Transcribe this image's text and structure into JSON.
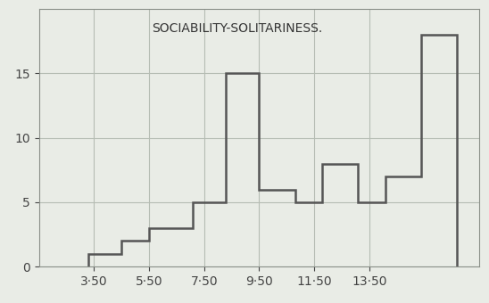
{
  "chart_data": {
    "type": "histogram",
    "title": "SOCIABILITY-SOLITARINESS.",
    "bins": [
      3.3,
      4.5,
      5.5,
      7.1,
      8.3,
      9.5,
      10.8,
      11.8,
      13.1,
      14.1,
      15.4,
      16.7
    ],
    "counts": [
      1,
      2,
      3,
      5,
      15,
      6,
      5,
      8,
      5,
      7,
      18
    ],
    "color": "#555555",
    "xlim": [
      1.5,
      17.5
    ],
    "xticks": [
      {
        "value": 3.5,
        "label": "3·50"
      },
      {
        "value": 5.5,
        "label": "5·50"
      },
      {
        "value": 7.5,
        "label": "7·50"
      },
      {
        "value": 9.5,
        "label": "9·50"
      },
      {
        "value": 11.5,
        "label": "11·50"
      },
      {
        "value": 13.5,
        "label": "13·50"
      }
    ],
    "ylim": [
      0,
      20
    ],
    "yticks": [
      0,
      5,
      10,
      15
    ],
    "grid": true
  }
}
